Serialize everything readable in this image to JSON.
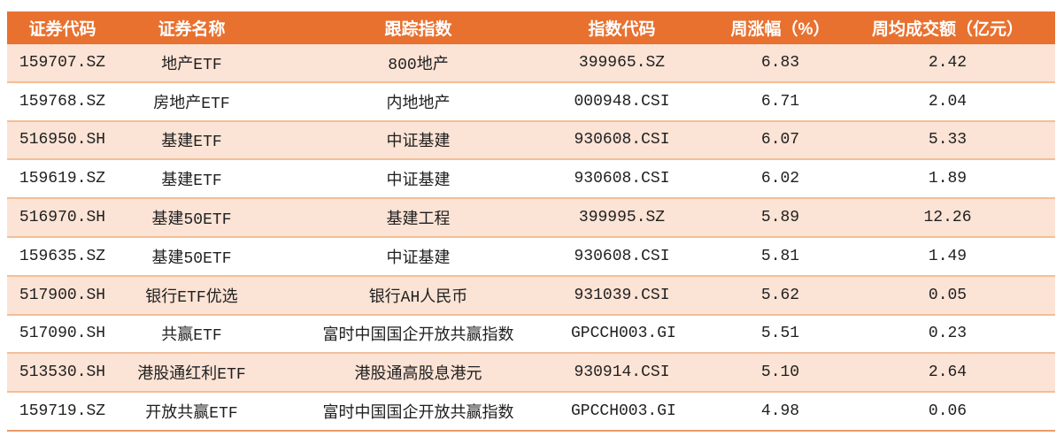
{
  "colors": {
    "header_bg": "#E87130",
    "header_text": "#ffffff",
    "row_alt_bg": "#FBE3D5",
    "row_bg": "#ffffff",
    "row_divider": "#F4BE97",
    "table_bottom_border": "#E99C68",
    "body_text": "#1f1f1f"
  },
  "table": {
    "columns": [
      {
        "key": "code",
        "label": "证券代码"
      },
      {
        "key": "name",
        "label": "证券名称"
      },
      {
        "key": "tracking_index",
        "label": "跟踪指数"
      },
      {
        "key": "index_code",
        "label": "指数代码"
      },
      {
        "key": "weekly_gain_pct",
        "label": "周涨幅（%）"
      },
      {
        "key": "weekly_avg_turnover",
        "label": "周均成交额（亿元）"
      }
    ],
    "rows": [
      {
        "code": "159707.SZ",
        "name": "地产ETF",
        "tracking_index": "800地产",
        "index_code": "399965.SZ",
        "weekly_gain_pct": "6.83",
        "weekly_avg_turnover": "2.42"
      },
      {
        "code": "159768.SZ",
        "name": "房地产ETF",
        "tracking_index": "内地地产",
        "index_code": "000948.CSI",
        "weekly_gain_pct": "6.71",
        "weekly_avg_turnover": "2.04"
      },
      {
        "code": "516950.SH",
        "name": "基建ETF",
        "tracking_index": "中证基建",
        "index_code": "930608.CSI",
        "weekly_gain_pct": "6.07",
        "weekly_avg_turnover": "5.33"
      },
      {
        "code": "159619.SZ",
        "name": "基建ETF",
        "tracking_index": "中证基建",
        "index_code": "930608.CSI",
        "weekly_gain_pct": "6.02",
        "weekly_avg_turnover": "1.89"
      },
      {
        "code": "516970.SH",
        "name": "基建50ETF",
        "tracking_index": "基建工程",
        "index_code": "399995.SZ",
        "weekly_gain_pct": "5.89",
        "weekly_avg_turnover": "12.26"
      },
      {
        "code": "159635.SZ",
        "name": "基建50ETF",
        "tracking_index": "中证基建",
        "index_code": "930608.CSI",
        "weekly_gain_pct": "5.81",
        "weekly_avg_turnover": "1.49"
      },
      {
        "code": "517900.SH",
        "name": "银行ETF优选",
        "tracking_index": "银行AH人民币",
        "index_code": "931039.CSI",
        "weekly_gain_pct": "5.62",
        "weekly_avg_turnover": "0.05"
      },
      {
        "code": "517090.SH",
        "name": "共赢ETF",
        "tracking_index": "富时中国国企开放共赢指数",
        "index_code": "GPCCH003.GI",
        "weekly_gain_pct": "5.51",
        "weekly_avg_turnover": "0.23"
      },
      {
        "code": "513530.SH",
        "name": "港股通红利ETF",
        "tracking_index": "港股通高股息港元",
        "index_code": "930914.CSI",
        "weekly_gain_pct": "5.10",
        "weekly_avg_turnover": "2.64"
      },
      {
        "code": "159719.SZ",
        "name": "开放共赢ETF",
        "tracking_index": "富时中国国企开放共赢指数",
        "index_code": "GPCCH003.GI",
        "weekly_gain_pct": "4.98",
        "weekly_avg_turnover": "0.06"
      }
    ]
  }
}
